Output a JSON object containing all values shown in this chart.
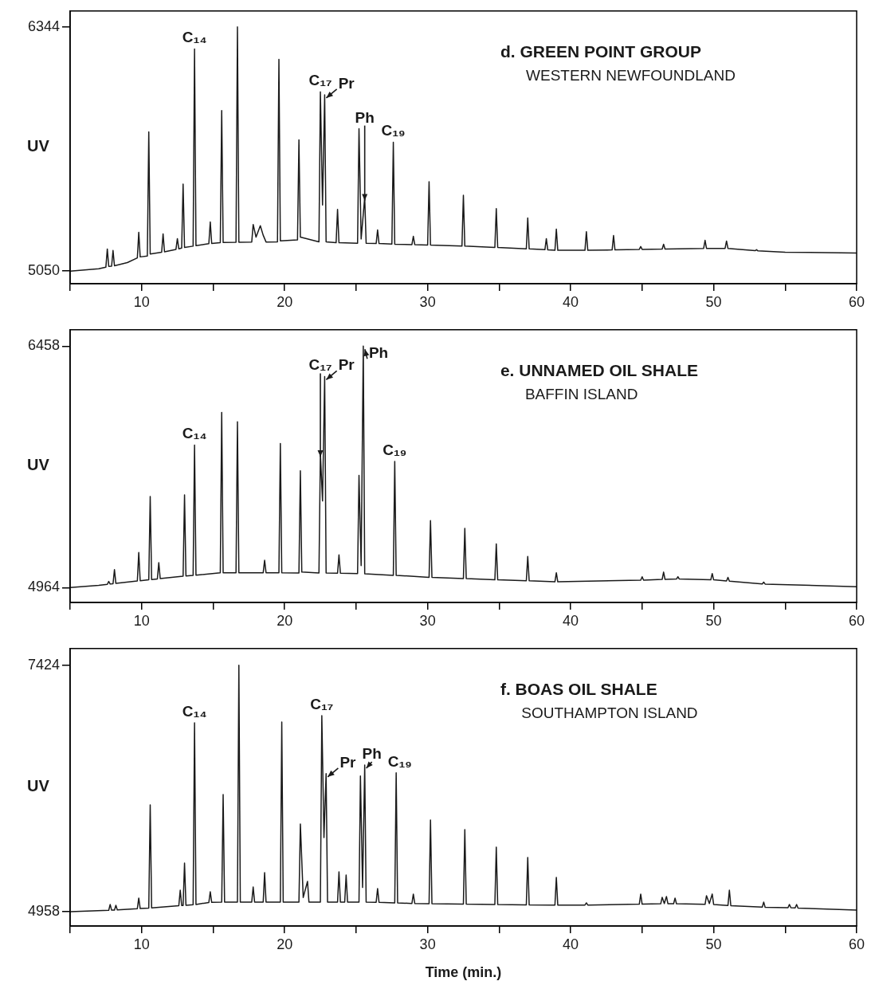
{
  "chart_data": [
    {
      "type": "line",
      "title": "d. GREEN POINT GROUP",
      "subtitle": "WESTERN NEWFOUNDLAND",
      "ylabel": "UV",
      "color": "#1a1a1a",
      "x": [
        5,
        7,
        7.5,
        7.6,
        7.7,
        7.9,
        8.0,
        8.1,
        9.0,
        9.7,
        9.8,
        9.9,
        10.4,
        10.5,
        10.6,
        11.4,
        11.5,
        11.6,
        12.4,
        12.5,
        12.6,
        12.8,
        12.9,
        13.0,
        13.6,
        13.7,
        13.8,
        14.7,
        14.8,
        14.9,
        15.5,
        15.6,
        15.7,
        16.6,
        16.7,
        16.8,
        17.7,
        17.8,
        18.0,
        18.3,
        18.5,
        18.7,
        19.5,
        19.6,
        19.7,
        20.9,
        21.0,
        21.1,
        22.4,
        22.5,
        22.65,
        22.8,
        22.9,
        23.6,
        23.7,
        23.8,
        25.1,
        25.2,
        25.35,
        25.6,
        25.7,
        26.4,
        26.5,
        26.6,
        27.5,
        27.6,
        27.7,
        28.9,
        29.0,
        29.1,
        30.0,
        30.1,
        30.2,
        32.4,
        32.5,
        32.6,
        34.7,
        34.8,
        34.9,
        36.9,
        37.0,
        37.1,
        38.2,
        38.3,
        38.4,
        38.9,
        39.0,
        39.1,
        41.0,
        41.1,
        41.2,
        42.9,
        43.0,
        43.1,
        44.8,
        44.9,
        45.0,
        46.4,
        46.5,
        46.6,
        49.3,
        49.4,
        49.5,
        50.8,
        50.9,
        51.0,
        52.9,
        53.0,
        53.1,
        55,
        60
      ],
      "values": [
        5050,
        5062,
        5071,
        5167,
        5075,
        5076,
        5159,
        5078,
        5095,
        5120,
        5255,
        5125,
        5130,
        5787,
        5140,
        5150,
        5247,
        5152,
        5165,
        5222,
        5168,
        5172,
        5511,
        5175,
        5182,
        6227,
        5185,
        5195,
        5310,
        5196,
        5200,
        5900,
        5202,
        5203,
        6344,
        5203,
        5204,
        5297,
        5230,
        5290,
        5240,
        5204,
        5205,
        6172,
        5210,
        5215,
        5745,
        5230,
        5205,
        6000,
        5400,
        5984,
        5205,
        5200,
        5377,
        5200,
        5197,
        5804,
        5220,
        5440,
        5197,
        5196,
        5268,
        5196,
        5193,
        5733,
        5192,
        5190,
        5234,
        5190,
        5188,
        5523,
        5188,
        5182,
        5452,
        5182,
        5175,
        5381,
        5175,
        5168,
        5331,
        5168,
        5163,
        5222,
        5162,
        5160,
        5272,
        5160,
        5160,
        5259,
        5160,
        5162,
        5238,
        5162,
        5165,
        5180,
        5165,
        5167,
        5192,
        5167,
        5170,
        5213,
        5170,
        5170,
        5209,
        5170,
        5158,
        5163,
        5157,
        5150,
        5146
      ],
      "xlim": [
        5,
        60
      ],
      "xticks": [
        {
          "value": 5,
          "label": null
        },
        10,
        {
          "value": 15,
          "label": null
        },
        20,
        {
          "value": 25,
          "label": null
        },
        30,
        {
          "value": 35,
          "label": null
        },
        40,
        {
          "value": 45,
          "label": null
        },
        50,
        {
          "value": 55,
          "label": null
        },
        60
      ],
      "ylim": [
        4983,
        6428
      ],
      "yticks": [
        5050,
        6344
      ],
      "annotations": [
        {
          "text": "C₁₄",
          "x": 13.7,
          "y": 6227
        },
        {
          "text": "C₁₇",
          "x": 22.5,
          "y": 6000
        },
        {
          "text": "Pr",
          "x": 22.8,
          "y": 5984
        },
        {
          "text": "Ph",
          "x": 25.6,
          "y": 5440
        },
        {
          "text": "C₁₉",
          "x": 27.6,
          "y": 5733
        }
      ]
    },
    {
      "type": "line",
      "title": "e. UNNAMED OIL SHALE",
      "subtitle": "BAFFIN ISLAND",
      "ylabel": "UV",
      "color": "#1a1a1a",
      "x": [
        5,
        7,
        7.6,
        7.7,
        7.8,
        8.0,
        8.1,
        8.2,
        9.7,
        9.8,
        9.9,
        10.5,
        10.6,
        10.7,
        11.1,
        11.2,
        11.3,
        12.9,
        13.0,
        13.1,
        13.6,
        13.7,
        13.8,
        15.5,
        15.6,
        15.7,
        16.6,
        16.7,
        16.8,
        18.5,
        18.6,
        18.7,
        19.6,
        19.7,
        19.8,
        21.0,
        21.1,
        21.2,
        22.4,
        22.5,
        22.65,
        22.8,
        22.9,
        23.7,
        23.8,
        23.9,
        25.1,
        25.2,
        25.35,
        25.5,
        25.6,
        27.6,
        27.7,
        27.8,
        30.1,
        30.2,
        30.3,
        32.5,
        32.6,
        32.7,
        34.7,
        34.8,
        34.9,
        36.9,
        37.0,
        37.1,
        38.9,
        39.0,
        39.1,
        44.9,
        45.0,
        45.1,
        46.4,
        46.5,
        46.6,
        47.4,
        47.5,
        47.6,
        49.8,
        49.9,
        50.0,
        50.9,
        51.0,
        51.1,
        53.4,
        53.5,
        53.6,
        60
      ],
      "values": [
        4964,
        4978,
        4984,
        5002,
        4986,
        4988,
        5075,
        4990,
        5005,
        5181,
        5006,
        5012,
        5528,
        5014,
        5018,
        5118,
        5020,
        5035,
        5538,
        5036,
        5040,
        5846,
        5041,
        5056,
        6048,
        5056,
        5056,
        5990,
        5056,
        5056,
        5133,
        5056,
        5056,
        5856,
        5056,
        5055,
        5687,
        5060,
        5054,
        5793,
        5500,
        6270,
        5054,
        5053,
        5166,
        5053,
        5051,
        5658,
        5100,
        6458,
        5050,
        5040,
        5745,
        5040,
        5027,
        5378,
        5027,
        5020,
        5330,
        5020,
        5012,
        5234,
        5012,
        5006,
        5157,
        5006,
        5000,
        5056,
        5000,
        5010,
        5031,
        5010,
        5015,
        5060,
        5015,
        5017,
        5031,
        5017,
        5012,
        5051,
        5012,
        5005,
        5027,
        5004,
        4987,
        4998,
        4986,
        4969
      ],
      "xlim": [
        5,
        60
      ],
      "xticks": [
        {
          "value": 5,
          "label": null
        },
        10,
        {
          "value": 15,
          "label": null
        },
        20,
        {
          "value": 25,
          "label": null
        },
        30,
        {
          "value": 35,
          "label": null
        },
        40,
        {
          "value": 45,
          "label": null
        },
        50,
        {
          "value": 55,
          "label": null
        },
        60
      ],
      "ylim": [
        4872,
        6559
      ],
      "yticks": [
        4964,
        6458
      ],
      "annotations": [
        {
          "text": "C₁₄",
          "x": 13.7,
          "y": 5846
        },
        {
          "text": "C₁₇",
          "x": 22.5,
          "y": 5793
        },
        {
          "text": "Pr",
          "x": 22.8,
          "y": 6270
        },
        {
          "text": "Ph",
          "x": 25.5,
          "y": 6458
        },
        {
          "text": "C₁₉",
          "x": 27.7,
          "y": 5745
        }
      ]
    },
    {
      "type": "line",
      "title": "f. BOAS OIL SHALE",
      "subtitle": "SOUTHAMPTON ISLAND",
      "ylabel": "UV",
      "xlabel": "Time (min.)",
      "color": "#1a1a1a",
      "x": [
        5,
        7.7,
        7.8,
        7.9,
        8.1,
        8.2,
        8.3,
        9.7,
        9.8,
        9.9,
        10.5,
        10.6,
        10.7,
        12.6,
        12.7,
        12.8,
        12.9,
        13.0,
        13.1,
        13.6,
        13.7,
        13.8,
        14.7,
        14.8,
        14.9,
        15.6,
        15.7,
        15.8,
        16.7,
        16.8,
        16.9,
        17.7,
        17.8,
        17.9,
        18.5,
        18.6,
        18.7,
        19.7,
        19.8,
        19.9,
        21.0,
        21.1,
        21.3,
        21.6,
        21.7,
        22.5,
        22.6,
        22.75,
        22.9,
        23.0,
        23.7,
        23.8,
        23.9,
        24.2,
        24.3,
        24.4,
        25.2,
        25.3,
        25.45,
        25.6,
        25.7,
        26.4,
        26.5,
        26.6,
        27.7,
        27.8,
        27.9,
        28.9,
        29.0,
        29.1,
        30.1,
        30.2,
        30.3,
        32.5,
        32.6,
        32.7,
        34.7,
        34.8,
        34.9,
        36.9,
        37.0,
        37.1,
        38.9,
        39.0,
        39.1,
        41.0,
        41.1,
        41.2,
        44.8,
        44.9,
        45.0,
        46.3,
        46.4,
        46.55,
        46.7,
        46.8,
        47.2,
        47.3,
        47.4,
        49.4,
        49.5,
        49.7,
        49.9,
        50.0,
        51.0,
        51.1,
        51.2,
        53.4,
        53.5,
        53.6,
        55.2,
        55.3,
        55.4,
        55.7,
        55.8,
        55.9,
        60
      ],
      "values": [
        4958,
        4972,
        5030,
        4973,
        4974,
        5022,
        4975,
        4988,
        5094,
        4989,
        4994,
        6027,
        4995,
        5018,
        5173,
        5019,
        5020,
        5445,
        5021,
        5028,
        6849,
        5030,
        5050,
        5157,
        5051,
        5054,
        6131,
        5054,
        5054,
        7424,
        5054,
        5054,
        5205,
        5054,
        5054,
        5349,
        5054,
        5054,
        6857,
        5054,
        5054,
        5836,
        5100,
        5261,
        5054,
        5054,
        6921,
        5700,
        6339,
        5054,
        5054,
        5357,
        5054,
        5054,
        5325,
        5054,
        5054,
        6315,
        5200,
        6426,
        5054,
        5052,
        5189,
        5052,
        5045,
        6347,
        5045,
        5040,
        5134,
        5040,
        5038,
        5876,
        5038,
        5033,
        5780,
        5033,
        5030,
        5604,
        5030,
        5026,
        5501,
        5026,
        5023,
        5301,
        5023,
        5024,
        5046,
        5024,
        5033,
        5134,
        5033,
        5037,
        5102,
        5040,
        5110,
        5038,
        5037,
        5094,
        5037,
        5031,
        5118,
        5040,
        5134,
        5030,
        5020,
        5173,
        5018,
        5003,
        5054,
        5002,
        4998,
        5030,
        4997,
        4995,
        5030,
        4994,
        4974
      ],
      "xlim": [
        5,
        60
      ],
      "xticks": [
        {
          "value": 5,
          "label": null
        },
        10,
        {
          "value": 15,
          "label": null
        },
        20,
        {
          "value": 25,
          "label": null
        },
        30,
        {
          "value": 35,
          "label": null
        },
        40,
        {
          "value": 45,
          "label": null
        },
        50,
        {
          "value": 55,
          "label": null
        },
        60
      ],
      "ylim": [
        4814,
        7592
      ],
      "yticks": [
        4958,
        7424
      ],
      "annotations": [
        {
          "text": "C₁₄",
          "x": 13.7,
          "y": 6849
        },
        {
          "text": "C₁₇",
          "x": 22.6,
          "y": 6921
        },
        {
          "text": "Pr",
          "x": 22.9,
          "y": 6339
        },
        {
          "text": "Ph",
          "x": 25.6,
          "y": 6426
        },
        {
          "text": "C₁₉",
          "x": 27.8,
          "y": 6347
        }
      ]
    }
  ]
}
